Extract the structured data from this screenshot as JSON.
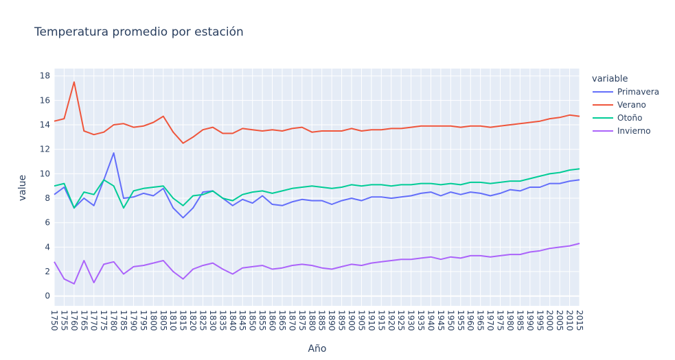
{
  "chart_data": {
    "type": "line",
    "title": "Temperatura promedio por estación",
    "xlabel": "Año",
    "ylabel": "value",
    "legend_title": "variable",
    "legend_position": "top-right",
    "grid": true,
    "xlim": [
      1750,
      2015
    ],
    "ylim": [
      -0.8,
      18.6
    ],
    "x_ticks": [
      1750,
      1755,
      1760,
      1765,
      1770,
      1775,
      1780,
      1785,
      1790,
      1795,
      1800,
      1805,
      1810,
      1815,
      1820,
      1825,
      1830,
      1835,
      1840,
      1845,
      1850,
      1855,
      1860,
      1865,
      1870,
      1875,
      1880,
      1885,
      1890,
      1895,
      1900,
      1905,
      1910,
      1915,
      1920,
      1925,
      1930,
      1935,
      1940,
      1945,
      1950,
      1955,
      1960,
      1965,
      1970,
      1975,
      1980,
      1985,
      1990,
      1995,
      2000,
      2005,
      2010,
      2015
    ],
    "y_ticks": [
      0,
      2,
      4,
      6,
      8,
      10,
      12,
      14,
      16,
      18
    ],
    "x": [
      1750,
      1755,
      1760,
      1765,
      1770,
      1775,
      1780,
      1785,
      1790,
      1795,
      1800,
      1805,
      1810,
      1815,
      1820,
      1825,
      1830,
      1835,
      1840,
      1845,
      1850,
      1855,
      1860,
      1865,
      1870,
      1875,
      1880,
      1885,
      1890,
      1895,
      1900,
      1905,
      1910,
      1915,
      1920,
      1925,
      1930,
      1935,
      1940,
      1945,
      1950,
      1955,
      1960,
      1965,
      1970,
      1975,
      1980,
      1985,
      1990,
      1995,
      2000,
      2005,
      2010,
      2015
    ],
    "series": [
      {
        "name": "Primavera",
        "color": "#636efa",
        "values": [
          8.3,
          8.9,
          7.2,
          8.0,
          7.4,
          9.5,
          11.7,
          8.0,
          8.1,
          8.4,
          8.2,
          8.8,
          7.2,
          6.4,
          7.2,
          8.5,
          8.6,
          8.0,
          7.4,
          7.9,
          7.6,
          8.2,
          7.5,
          7.4,
          7.7,
          7.9,
          7.8,
          7.8,
          7.5,
          7.8,
          8.0,
          7.8,
          8.1,
          8.1,
          8.0,
          8.1,
          8.2,
          8.4,
          8.5,
          8.2,
          8.5,
          8.3,
          8.5,
          8.4,
          8.2,
          8.4,
          8.7,
          8.6,
          8.9,
          8.9,
          9.2,
          9.2,
          9.4,
          9.5
        ]
      },
      {
        "name": "Verano",
        "color": "#ef553b",
        "values": [
          14.3,
          14.5,
          17.5,
          13.5,
          13.2,
          13.4,
          14.0,
          14.1,
          13.8,
          13.9,
          14.2,
          14.7,
          13.4,
          12.5,
          13.0,
          13.6,
          13.8,
          13.3,
          13.3,
          13.7,
          13.6,
          13.5,
          13.6,
          13.5,
          13.7,
          13.8,
          13.4,
          13.5,
          13.5,
          13.5,
          13.7,
          13.5,
          13.6,
          13.6,
          13.7,
          13.7,
          13.8,
          13.9,
          13.9,
          13.9,
          13.9,
          13.8,
          13.9,
          13.9,
          13.8,
          13.9,
          14.0,
          14.1,
          14.2,
          14.3,
          14.5,
          14.6,
          14.8,
          14.7
        ]
      },
      {
        "name": "Otoño",
        "color": "#00cc96",
        "values": [
          9.0,
          9.2,
          7.2,
          8.5,
          8.3,
          9.5,
          9.0,
          7.2,
          8.6,
          8.8,
          8.9,
          9.0,
          8.0,
          7.4,
          8.2,
          8.3,
          8.6,
          8.0,
          7.8,
          8.3,
          8.5,
          8.6,
          8.4,
          8.6,
          8.8,
          8.9,
          9.0,
          8.9,
          8.8,
          8.9,
          9.1,
          9.0,
          9.1,
          9.1,
          9.0,
          9.1,
          9.1,
          9.2,
          9.2,
          9.1,
          9.2,
          9.1,
          9.3,
          9.3,
          9.2,
          9.3,
          9.4,
          9.4,
          9.6,
          9.8,
          10.0,
          10.1,
          10.3,
          10.4
        ]
      },
      {
        "name": "Invierno",
        "color": "#ab63fa",
        "values": [
          2.8,
          1.4,
          1.0,
          2.9,
          1.1,
          2.6,
          2.8,
          1.8,
          2.4,
          2.5,
          2.7,
          2.9,
          2.0,
          1.4,
          2.2,
          2.5,
          2.7,
          2.2,
          1.8,
          2.3,
          2.4,
          2.5,
          2.2,
          2.3,
          2.5,
          2.6,
          2.5,
          2.3,
          2.2,
          2.4,
          2.6,
          2.5,
          2.7,
          2.8,
          2.9,
          3.0,
          3.0,
          3.1,
          3.2,
          3.0,
          3.2,
          3.1,
          3.3,
          3.3,
          3.2,
          3.3,
          3.4,
          3.4,
          3.6,
          3.7,
          3.9,
          4.0,
          4.1,
          4.3
        ]
      }
    ]
  }
}
